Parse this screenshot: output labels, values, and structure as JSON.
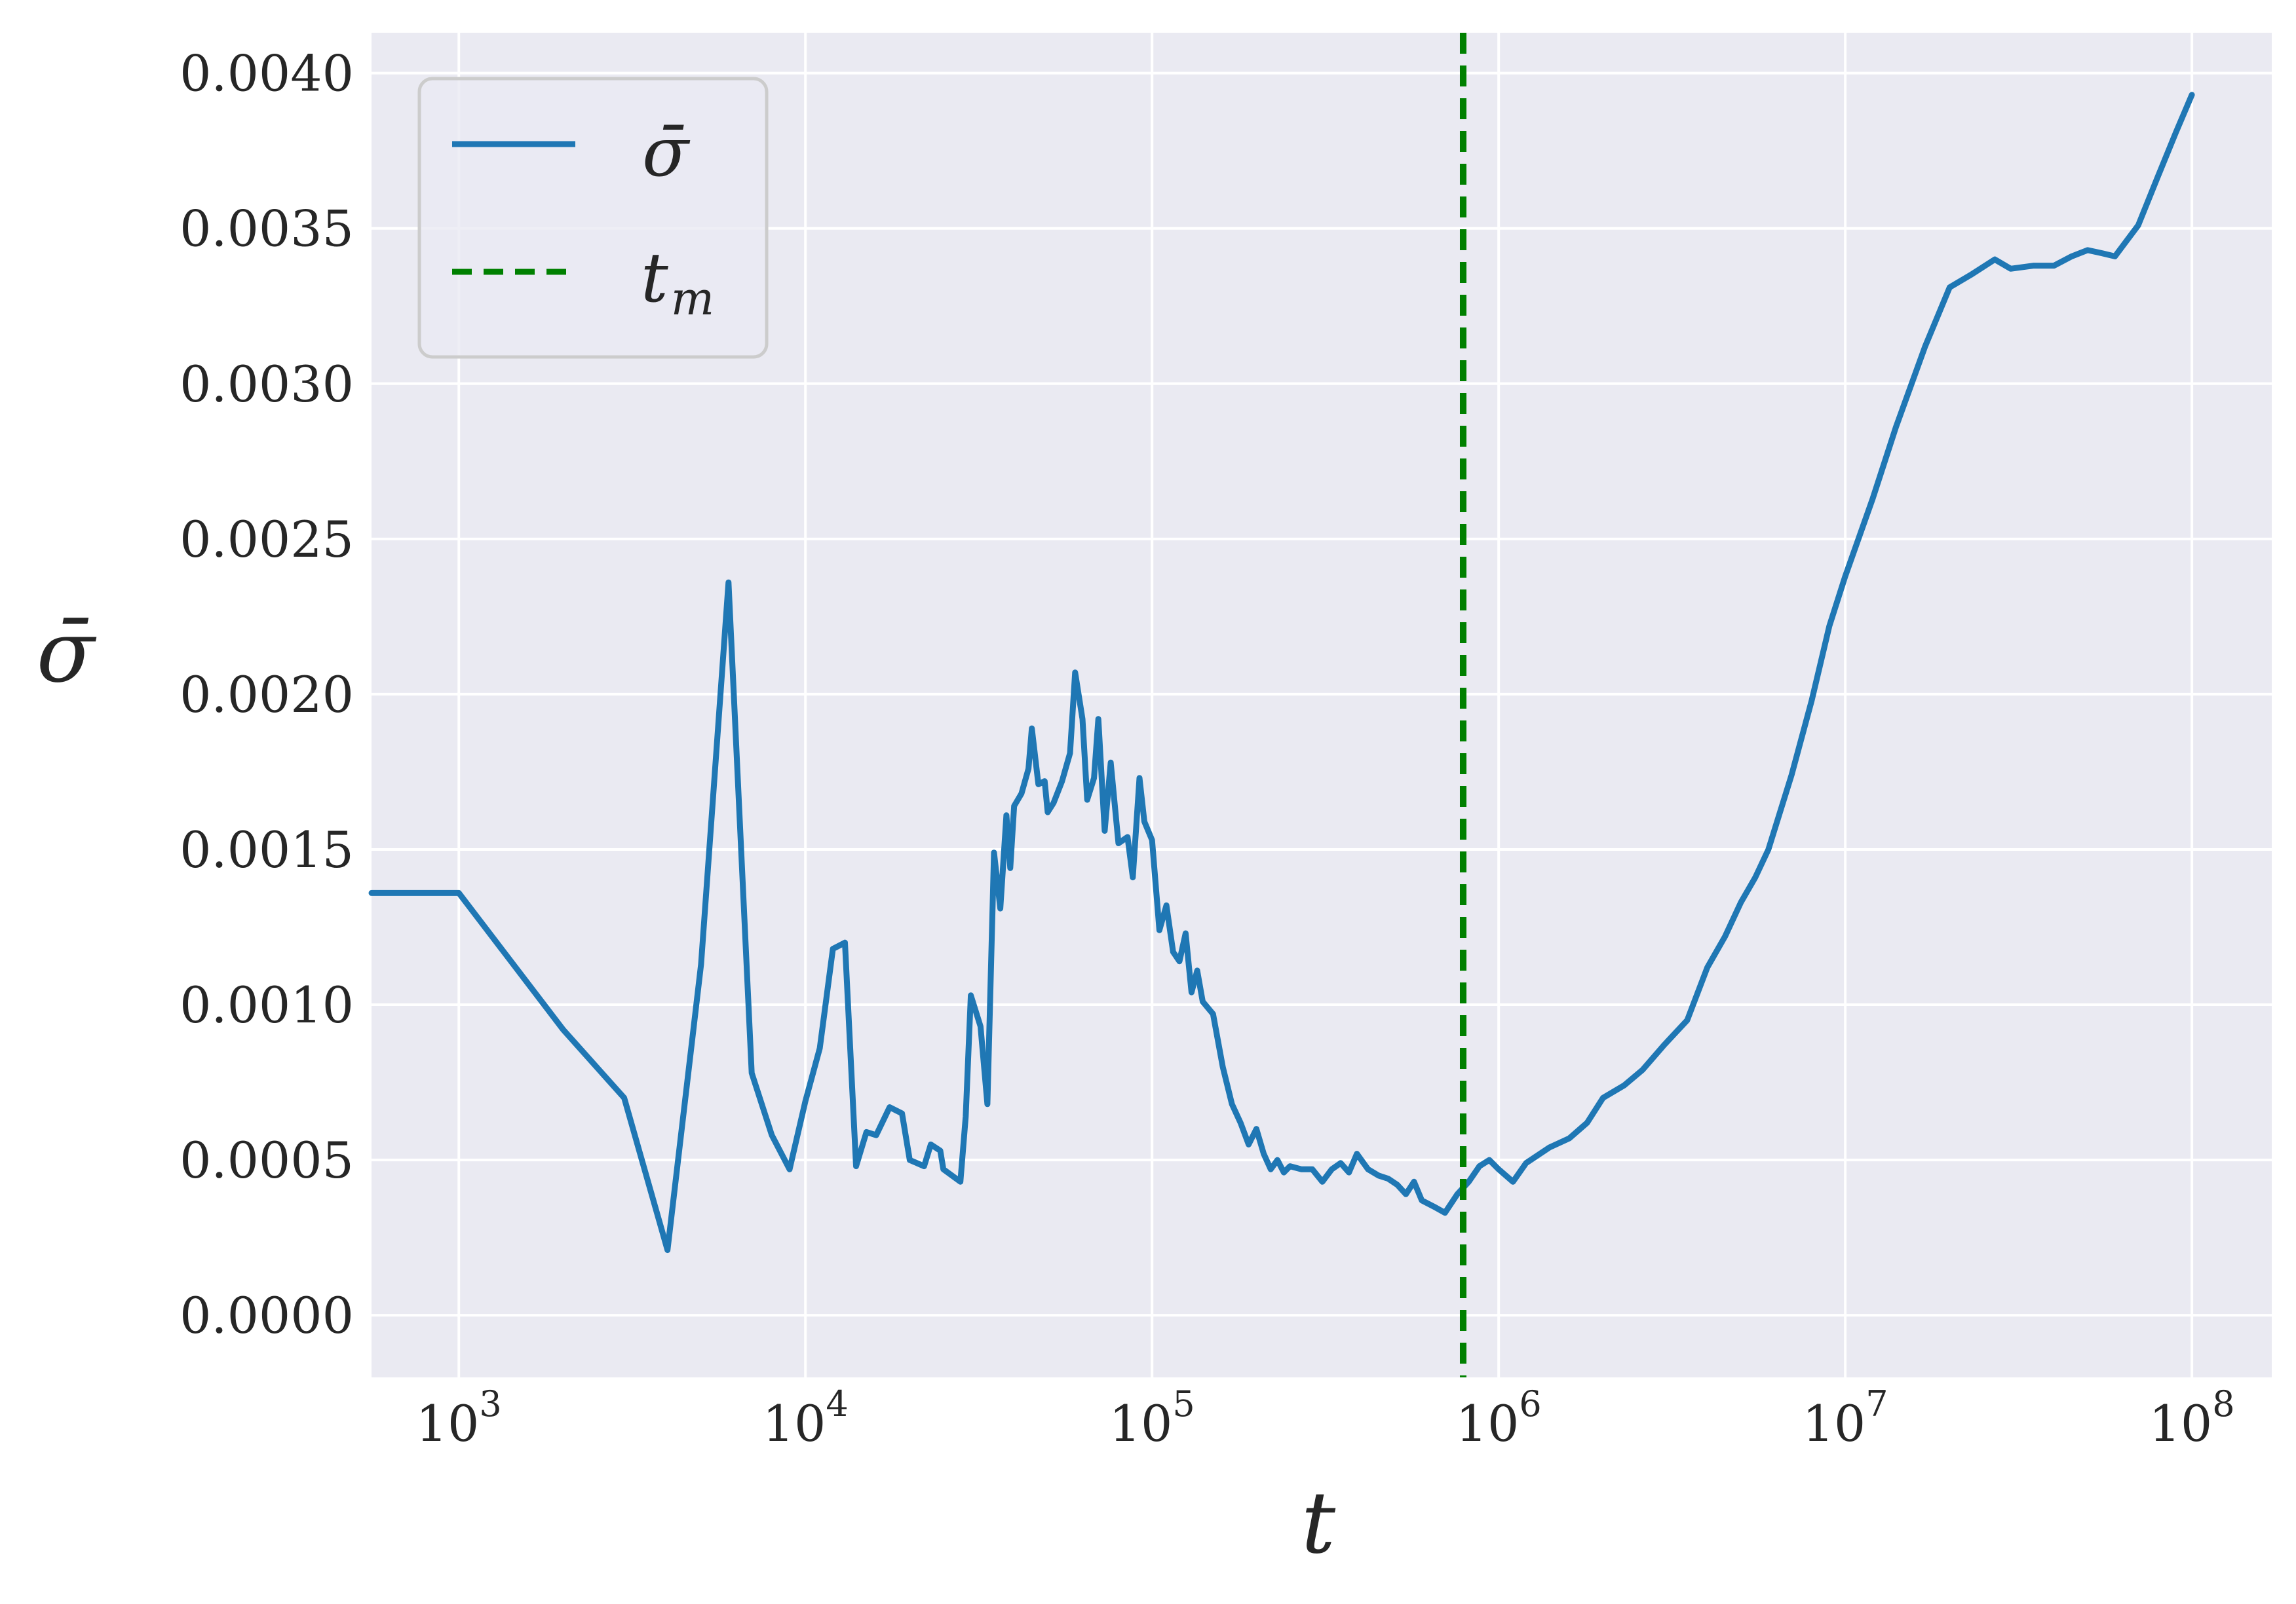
{
  "chart_data": {
    "type": "line",
    "title": "",
    "xlabel": "t",
    "ylabel": "σ̄",
    "x_scale": "log",
    "xlim": [
      560,
      170000000
    ],
    "ylim": [
      -0.0002,
      0.00413
    ],
    "grid": true,
    "legend_position": "top-left",
    "x_ticks": [
      {
        "value": 1000,
        "base": "10",
        "exp": "3"
      },
      {
        "value": 10000,
        "base": "10",
        "exp": "4"
      },
      {
        "value": 100000,
        "base": "10",
        "exp": "5"
      },
      {
        "value": 1000000,
        "base": "10",
        "exp": "6"
      },
      {
        "value": 10000000,
        "base": "10",
        "exp": "7"
      },
      {
        "value": 100000000,
        "base": "10",
        "exp": "8"
      }
    ],
    "y_ticks": [
      {
        "value": 0.0,
        "label": "0.0000"
      },
      {
        "value": 0.0005,
        "label": "0.0005"
      },
      {
        "value": 0.001,
        "label": "0.0010"
      },
      {
        "value": 0.0015,
        "label": "0.0015"
      },
      {
        "value": 0.002,
        "label": "0.0020"
      },
      {
        "value": 0.0025,
        "label": "0.0025"
      },
      {
        "value": 0.003,
        "label": "0.0030"
      },
      {
        "value": 0.0035,
        "label": "0.0035"
      },
      {
        "value": 0.004,
        "label": "0.0040"
      }
    ],
    "series": [
      {
        "name": "σ̄",
        "color": "#1f77b4",
        "points": [
          [
            560,
            0.00136
          ],
          [
            1000,
            0.00136
          ],
          [
            2000,
            0.00092
          ],
          [
            3000,
            0.0007
          ],
          [
            4000,
            0.00021
          ],
          [
            5000,
            0.00113
          ],
          [
            6000,
            0.00236
          ],
          [
            7000,
            0.00078
          ],
          [
            8000,
            0.00058
          ],
          [
            9000,
            0.00047
          ],
          [
            10000,
            0.00069
          ],
          [
            11000,
            0.00086
          ],
          [
            12000,
            0.00118
          ],
          [
            13000,
            0.0012
          ],
          [
            14000,
            0.00048
          ],
          [
            15000,
            0.00059
          ],
          [
            16000,
            0.00058
          ],
          [
            17500,
            0.00067
          ],
          [
            19000,
            0.00065
          ],
          [
            20000,
            0.0005
          ],
          [
            22000,
            0.00048
          ],
          [
            23000,
            0.00055
          ],
          [
            24500,
            0.00053
          ],
          [
            25000,
            0.00047
          ],
          [
            28000,
            0.00043
          ],
          [
            29000,
            0.00064
          ],
          [
            30000,
            0.00103
          ],
          [
            32000,
            0.00093
          ],
          [
            33500,
            0.00068
          ],
          [
            35000,
            0.00149
          ],
          [
            36500,
            0.00131
          ],
          [
            38000,
            0.00161
          ],
          [
            39000,
            0.00144
          ],
          [
            40000,
            0.00164
          ],
          [
            42000,
            0.00168
          ],
          [
            44000,
            0.00176
          ],
          [
            45000,
            0.00189
          ],
          [
            47000,
            0.00171
          ],
          [
            49000,
            0.00172
          ],
          [
            50000,
            0.00162
          ],
          [
            52000,
            0.00165
          ],
          [
            55000,
            0.00172
          ],
          [
            58000,
            0.00181
          ],
          [
            60000,
            0.00207
          ],
          [
            63000,
            0.00192
          ],
          [
            65000,
            0.00166
          ],
          [
            68000,
            0.00173
          ],
          [
            70000,
            0.00192
          ],
          [
            73000,
            0.00156
          ],
          [
            76000,
            0.00178
          ],
          [
            80000,
            0.00152
          ],
          [
            85000,
            0.00154
          ],
          [
            88000,
            0.00141
          ],
          [
            92000,
            0.00173
          ],
          [
            95000,
            0.00159
          ],
          [
            100000,
            0.00153
          ],
          [
            105000,
            0.00124
          ],
          [
            110000,
            0.00132
          ],
          [
            115000,
            0.00117
          ],
          [
            120000,
            0.00114
          ],
          [
            125000,
            0.00123
          ],
          [
            130000,
            0.00104
          ],
          [
            135000,
            0.00111
          ],
          [
            140000,
            0.00101
          ],
          [
            150000,
            0.00097
          ],
          [
            160000,
            0.0008
          ],
          [
            170000,
            0.00068
          ],
          [
            180000,
            0.00062
          ],
          [
            190000,
            0.00055
          ],
          [
            200000,
            0.0006
          ],
          [
            210000,
            0.00052
          ],
          [
            220000,
            0.00047
          ],
          [
            230000,
            0.0005
          ],
          [
            240000,
            0.00046
          ],
          [
            250000,
            0.00048
          ],
          [
            270000,
            0.00047
          ],
          [
            290000,
            0.00047
          ],
          [
            310000,
            0.00043
          ],
          [
            330000,
            0.00047
          ],
          [
            350000,
            0.00049
          ],
          [
            370000,
            0.00046
          ],
          [
            390000,
            0.00052
          ],
          [
            420000,
            0.00047
          ],
          [
            450000,
            0.00045
          ],
          [
            480000,
            0.00044
          ],
          [
            510000,
            0.00042
          ],
          [
            540000,
            0.00039
          ],
          [
            570000,
            0.00043
          ],
          [
            600000,
            0.00037
          ],
          [
            650000,
            0.00035
          ],
          [
            700000,
            0.00033
          ],
          [
            760000,
            0.00039
          ],
          [
            820000,
            0.00043
          ],
          [
            880000,
            0.00048
          ],
          [
            940000,
            0.0005
          ],
          [
            1000000,
            0.00047
          ],
          [
            1100000,
            0.00043
          ],
          [
            1200000,
            0.00049
          ],
          [
            1400000,
            0.00054
          ],
          [
            1600000,
            0.00057
          ],
          [
            1800000,
            0.00062
          ],
          [
            2000000,
            0.0007
          ],
          [
            2300000,
            0.00074
          ],
          [
            2600000,
            0.00079
          ],
          [
            3000000,
            0.00087
          ],
          [
            3500000,
            0.00095
          ],
          [
            4000000,
            0.00112
          ],
          [
            4500000,
            0.00122
          ],
          [
            5000000,
            0.00133
          ],
          [
            5500000,
            0.00141
          ],
          [
            6000000,
            0.0015
          ],
          [
            7000000,
            0.00174
          ],
          [
            8000000,
            0.00198
          ],
          [
            9000000,
            0.00222
          ],
          [
            10000000,
            0.00238
          ],
          [
            12000000,
            0.00263
          ],
          [
            14000000,
            0.00286
          ],
          [
            17000000,
            0.00312
          ],
          [
            20000000,
            0.00331
          ],
          [
            23000000,
            0.00335
          ],
          [
            27000000,
            0.0034
          ],
          [
            30000000,
            0.00337
          ],
          [
            35000000,
            0.00338
          ],
          [
            40000000,
            0.00338
          ],
          [
            45000000,
            0.00341
          ],
          [
            50000000,
            0.00343
          ],
          [
            55000000,
            0.00342
          ],
          [
            60000000,
            0.00341
          ],
          [
            70000000,
            0.00351
          ],
          [
            80000000,
            0.00367
          ],
          [
            90000000,
            0.00381
          ],
          [
            100000000,
            0.00393
          ]
        ]
      },
      {
        "name": "t_m",
        "color": "#008000",
        "style": "dashed",
        "x": 790000
      }
    ],
    "legend": [
      {
        "series": "σ̄",
        "main": "σ̄",
        "sub": ""
      },
      {
        "series": "t_m",
        "main": "t",
        "sub": "m"
      }
    ]
  }
}
